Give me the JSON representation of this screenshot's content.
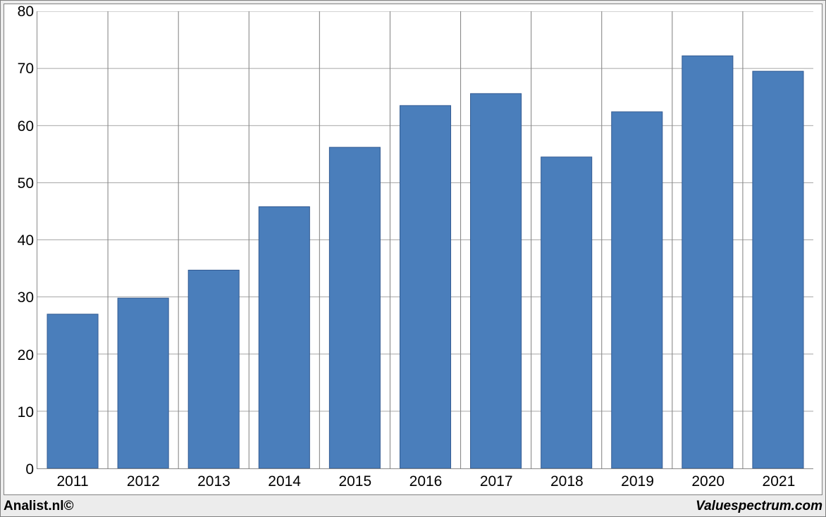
{
  "chart": {
    "type": "bar",
    "background_color": "#ffffff",
    "outer_background": "#ececec",
    "border_color": "#808080",
    "grid_color": "#8a8a8a",
    "bar_fill": "#4a7ebb",
    "bar_stroke": "#335b92",
    "bar_width_ratio": 0.72,
    "categories": [
      "2011",
      "2012",
      "2013",
      "2014",
      "2015",
      "2016",
      "2017",
      "2018",
      "2019",
      "2020",
      "2021"
    ],
    "values": [
      27.0,
      29.8,
      34.7,
      45.8,
      56.2,
      63.5,
      65.6,
      54.5,
      62.4,
      72.2,
      69.5
    ],
    "y_axis": {
      "min": 0,
      "max": 80,
      "tick_step": 10,
      "ticks": [
        0,
        10,
        20,
        30,
        40,
        50,
        60,
        70,
        80
      ],
      "label_fontsize": 21
    },
    "x_axis": {
      "label_fontsize": 21
    }
  },
  "footer": {
    "left": "Analist.nl©",
    "right": "Valuespectrum.com"
  }
}
